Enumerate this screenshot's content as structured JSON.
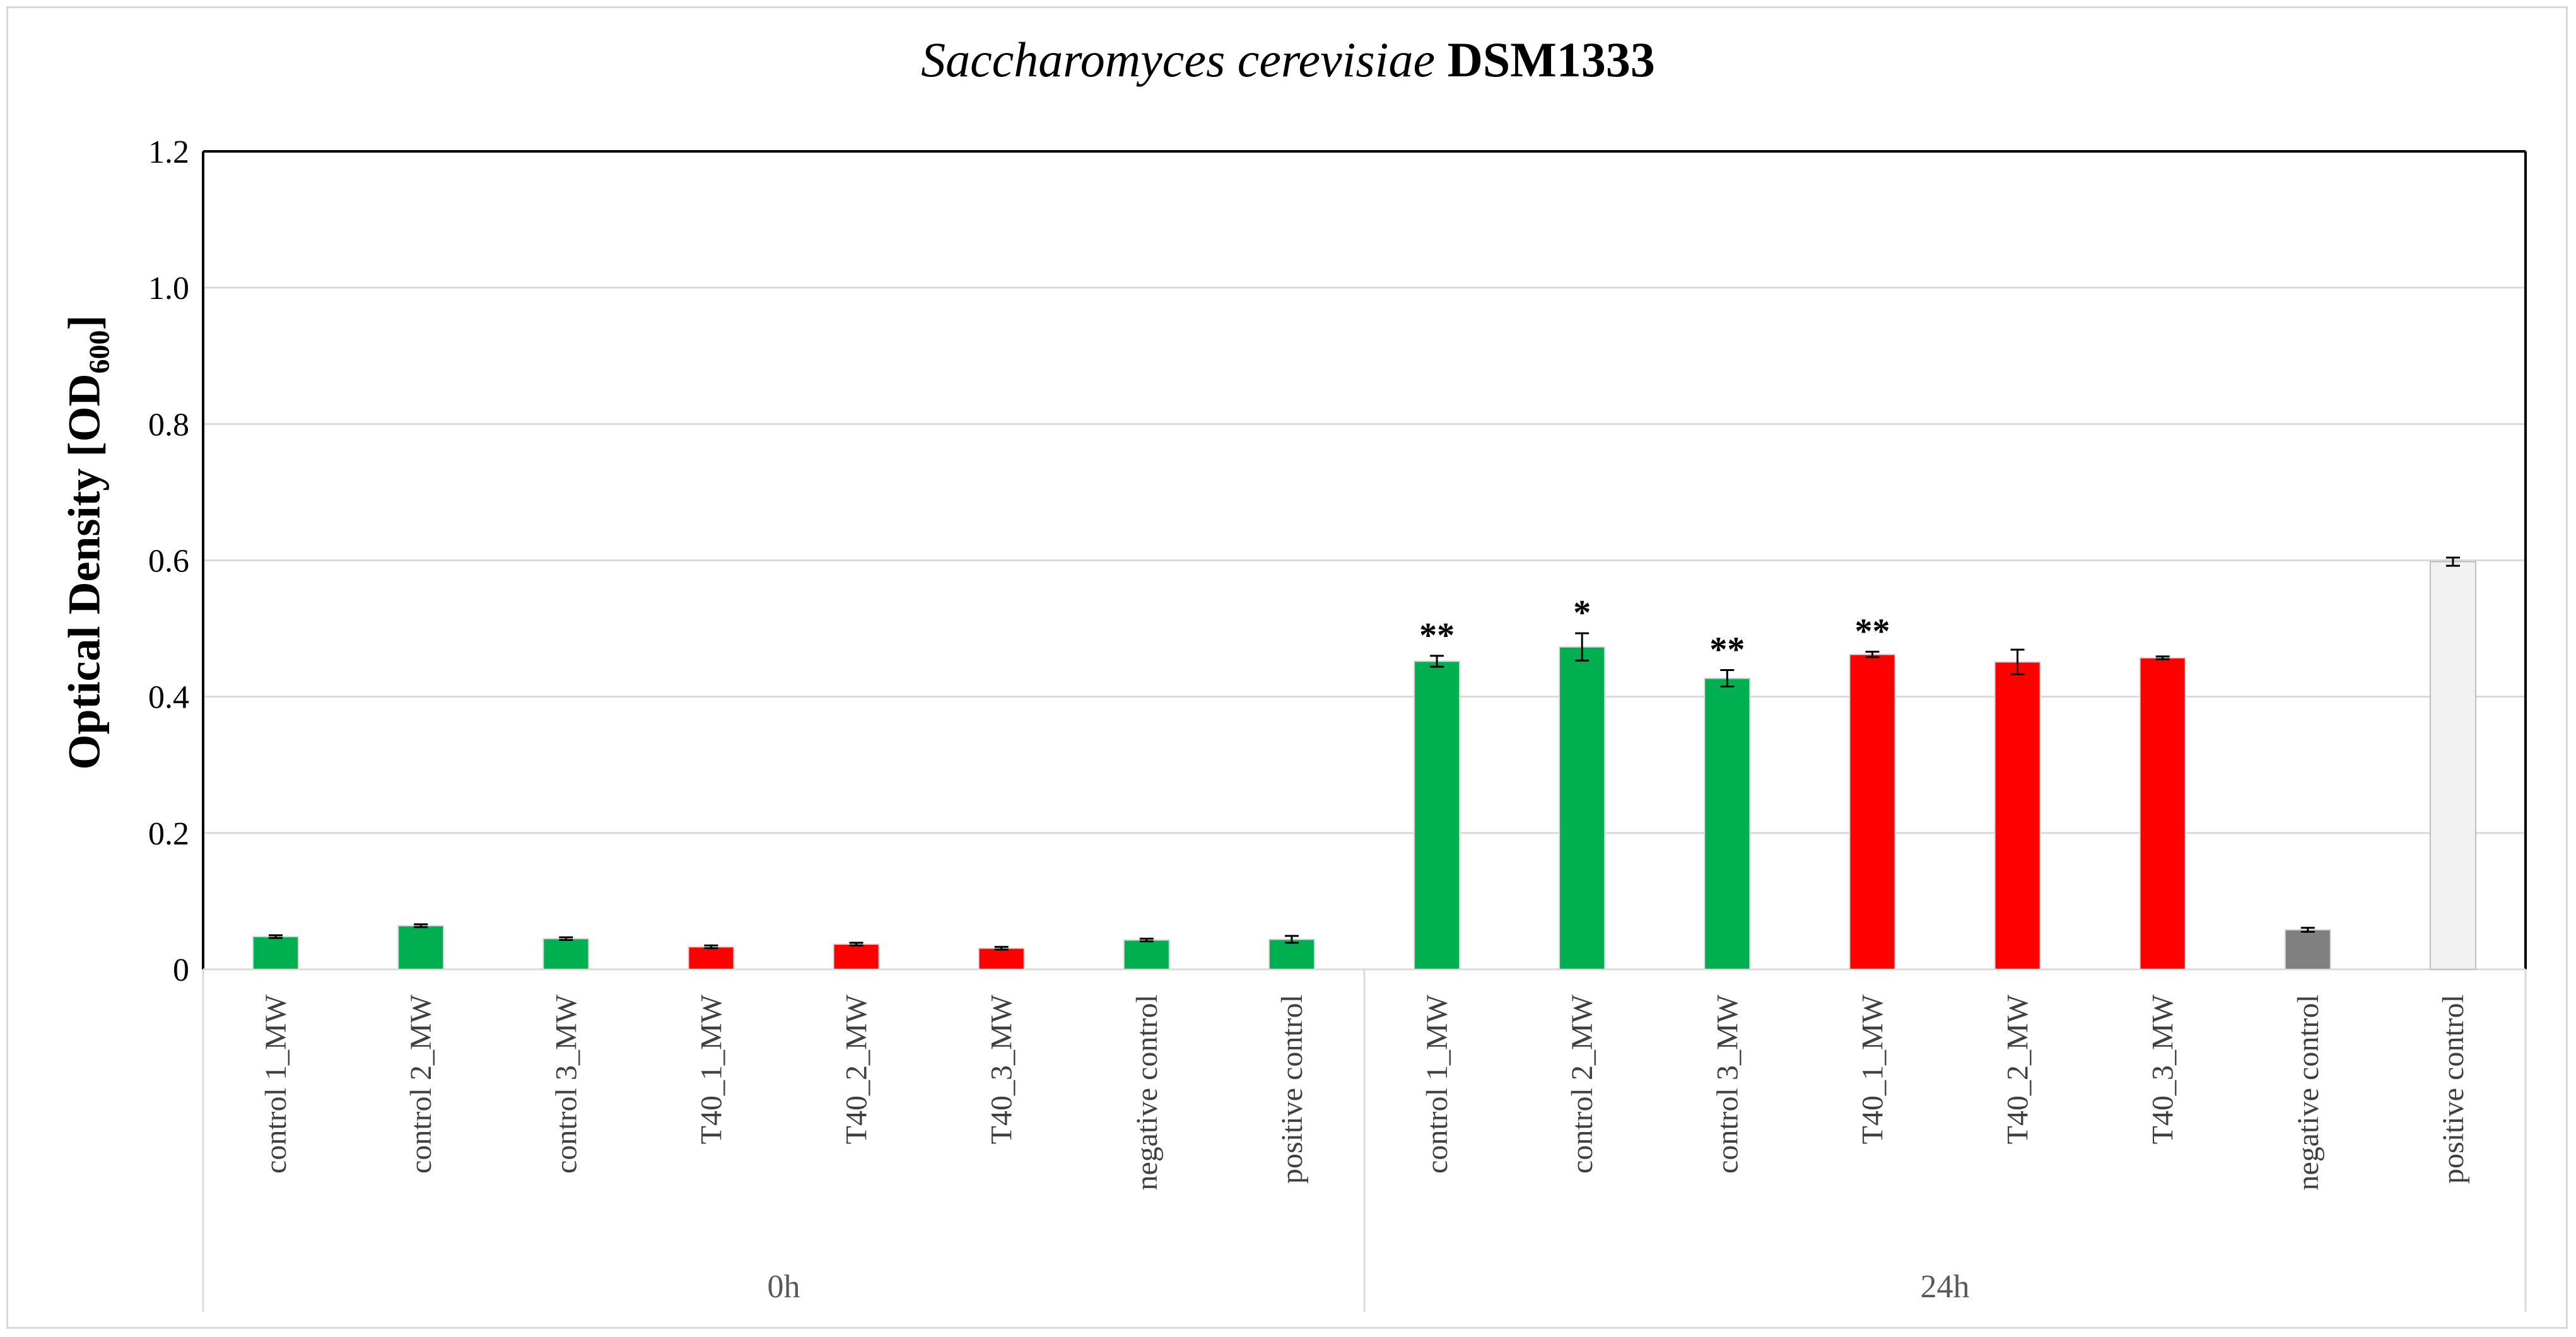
{
  "title": {
    "italic": "Saccharomyces cerevisiae",
    "bold": " DSM1333"
  },
  "ylabel": {
    "main": "Optical Density [OD",
    "sub": "600",
    "close": "]"
  },
  "colors": {
    "green": "#00b050",
    "red": "#ff0000",
    "gray": "#808080",
    "lightgray": "#f2f2f2"
  },
  "chart_data": {
    "type": "bar",
    "title": "Saccharomyces cerevisiae DSM1333",
    "ylabel": "Optical Density [OD600]",
    "ylim": [
      0,
      1.2
    ],
    "yticks": [
      "0",
      "0.2",
      "0.4",
      "0.6",
      "0.8",
      "1.0",
      "1.2"
    ],
    "grid": true,
    "groups": [
      {
        "name": "0h",
        "bars": [
          {
            "label": "control 1_MW",
            "value": 0.048,
            "err": 0.002,
            "color": "#00b050",
            "sig": ""
          },
          {
            "label": "control 2_MW",
            "value": 0.064,
            "err": 0.002,
            "color": "#00b050",
            "sig": ""
          },
          {
            "label": "control 3_MW",
            "value": 0.045,
            "err": 0.002,
            "color": "#00b050",
            "sig": ""
          },
          {
            "label": "T40_1_MW",
            "value": 0.033,
            "err": 0.002,
            "color": "#ff0000",
            "sig": ""
          },
          {
            "label": "T40_2_MW",
            "value": 0.037,
            "err": 0.002,
            "color": "#ff0000",
            "sig": ""
          },
          {
            "label": "T40_3_MW",
            "value": 0.031,
            "err": 0.002,
            "color": "#ff0000",
            "sig": ""
          },
          {
            "label": "negative control",
            "value": 0.043,
            "err": 0.002,
            "color": "#00b050",
            "sig": ""
          },
          {
            "label": "positive control",
            "value": 0.044,
            "err": 0.005,
            "color": "#00b050",
            "sig": ""
          }
        ]
      },
      {
        "name": "24h",
        "bars": [
          {
            "label": "control 1_MW",
            "value": 0.452,
            "err": 0.008,
            "color": "#00b050",
            "sig": "**"
          },
          {
            "label": "control 2_MW",
            "value": 0.473,
            "err": 0.02,
            "color": "#00b050",
            "sig": "*"
          },
          {
            "label": "control 3_MW",
            "value": 0.427,
            "err": 0.012,
            "color": "#00b050",
            "sig": "**"
          },
          {
            "label": "T40_1_MW",
            "value": 0.462,
            "err": 0.004,
            "color": "#ff0000",
            "sig": "**"
          },
          {
            "label": "T40_2_MW",
            "value": 0.451,
            "err": 0.018,
            "color": "#ff0000",
            "sig": ""
          },
          {
            "label": "T40_3_MW",
            "value": 0.457,
            "err": 0.002,
            "color": "#ff0000",
            "sig": ""
          },
          {
            "label": "negative control",
            "value": 0.058,
            "err": 0.003,
            "color": "#808080",
            "sig": ""
          },
          {
            "label": "positive control",
            "value": 0.598,
            "err": 0.006,
            "color": "#f2f2f2",
            "sig": ""
          }
        ]
      }
    ]
  }
}
